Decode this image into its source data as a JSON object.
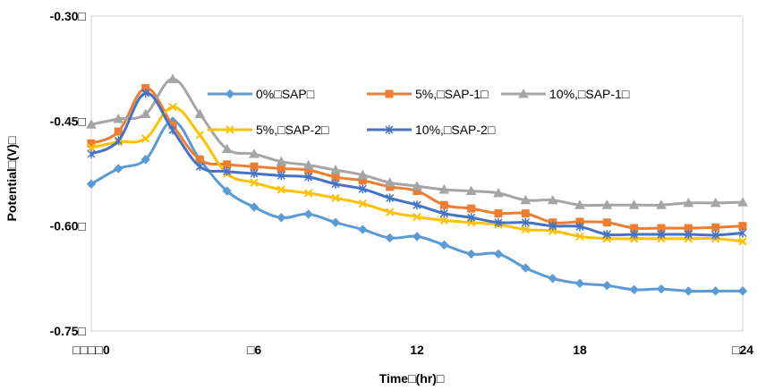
{
  "chart_data": {
    "type": "line",
    "xlabel": "Time□(hr)□",
    "ylabel": "Potential□(V)□",
    "xlim": [
      0,
      24
    ],
    "ylim": [
      -0.75,
      -0.3
    ],
    "x_ticks": [
      0,
      6,
      12,
      18,
      24
    ],
    "x_tick_labels": [
      "□□□□0",
      "□6",
      "12",
      "18",
      "□24"
    ],
    "y_ticks": [
      -0.3,
      -0.45,
      -0.6,
      -0.75
    ],
    "y_tick_labels": [
      "-0.30□",
      "-0.45□",
      "-0.60□",
      "-0.75□"
    ],
    "grid": false,
    "legend_position": "inside-top",
    "x": [
      0,
      1,
      2,
      3,
      4,
      5,
      6,
      7,
      8,
      9,
      10,
      11,
      12,
      13,
      14,
      15,
      16,
      17,
      18,
      19,
      20,
      21,
      22,
      23,
      24
    ],
    "series": [
      {
        "name": "0%□SAP□",
        "color": "#5b9bd5",
        "marker": "diamond",
        "values": [
          -0.54,
          -0.518,
          -0.505,
          -0.45,
          -0.505,
          -0.55,
          -0.573,
          -0.588,
          -0.583,
          -0.595,
          -0.605,
          -0.617,
          -0.615,
          -0.627,
          -0.64,
          -0.64,
          -0.66,
          -0.675,
          -0.682,
          -0.685,
          -0.691,
          -0.69,
          -0.693,
          -0.693,
          -0.693
        ]
      },
      {
        "name": "5%,□SAP-1□",
        "color": "#ed7d31",
        "marker": "square",
        "values": [
          -0.482,
          -0.465,
          -0.403,
          -0.456,
          -0.505,
          -0.512,
          -0.515,
          -0.518,
          -0.52,
          -0.53,
          -0.535,
          -0.544,
          -0.55,
          -0.57,
          -0.575,
          -0.582,
          -0.582,
          -0.595,
          -0.594,
          -0.595,
          -0.603,
          -0.603,
          -0.603,
          -0.602,
          -0.6
        ]
      },
      {
        "name": "10%,□SAP-1□",
        "color": "#a5a5a5",
        "marker": "triangle",
        "values": [
          -0.455,
          -0.447,
          -0.44,
          -0.39,
          -0.44,
          -0.49,
          -0.497,
          -0.508,
          -0.513,
          -0.52,
          -0.527,
          -0.538,
          -0.543,
          -0.548,
          -0.55,
          -0.553,
          -0.563,
          -0.563,
          -0.57,
          -0.57,
          -0.57,
          -0.57,
          -0.567,
          -0.567,
          -0.566
        ]
      },
      {
        "name": "5%,□SAP-2□",
        "color": "#ffc000",
        "marker": "x",
        "values": [
          -0.488,
          -0.48,
          -0.475,
          -0.43,
          -0.47,
          -0.525,
          -0.538,
          -0.548,
          -0.553,
          -0.56,
          -0.568,
          -0.58,
          -0.587,
          -0.592,
          -0.595,
          -0.598,
          -0.605,
          -0.607,
          -0.615,
          -0.618,
          -0.618,
          -0.618,
          -0.618,
          -0.618,
          -0.622
        ]
      },
      {
        "name": "10%,□SAP-2□",
        "color": "#4472c4",
        "marker": "asterisk",
        "values": [
          -0.497,
          -0.478,
          -0.41,
          -0.463,
          -0.515,
          -0.522,
          -0.525,
          -0.528,
          -0.53,
          -0.54,
          -0.547,
          -0.56,
          -0.57,
          -0.582,
          -0.588,
          -0.595,
          -0.595,
          -0.6,
          -0.601,
          -0.612,
          -0.612,
          -0.612,
          -0.612,
          -0.613,
          -0.61
        ]
      }
    ]
  }
}
